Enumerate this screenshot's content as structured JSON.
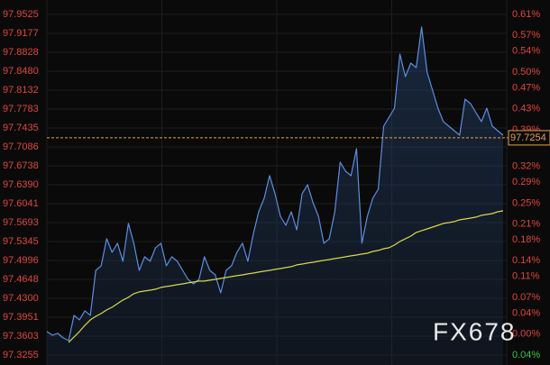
{
  "chart_data": {
    "type": "line",
    "watermark": "FX678",
    "last_value": 97.7254,
    "last_color": "#e8a24a",
    "axis_color": "#e0463c",
    "negative_color": "#3ec24a",
    "grid": true,
    "area_fill": true,
    "ylim": [
      97.3255,
      97.9525
    ],
    "yticks": [
      97.9525,
      97.9177,
      97.8828,
      {
        "value": 97.848,
        "label": "97.8480"
      },
      97.8132,
      97.7783,
      97.7435,
      97.7086,
      97.6738,
      {
        "value": 97.639,
        "label": "97.6390"
      },
      97.6041,
      97.5693,
      97.5345,
      97.4996,
      97.4648,
      {
        "value": 97.43,
        "label": "97.4300"
      },
      97.3951,
      97.3603,
      97.3255
    ],
    "y2lim": [
      -0.04,
      0.61
    ],
    "y2ticks": [
      {
        "value": 0.61,
        "label": "0.61%"
      },
      {
        "value": 0.57,
        "label": "0.57%"
      },
      {
        "value": 0.54,
        "label": "0.54%"
      },
      {
        "value": 0.5,
        "label": "0.50%"
      },
      {
        "value": 0.47,
        "label": "0.47%"
      },
      {
        "value": 0.43,
        "label": "0.43%"
      },
      {
        "value": 0.39,
        "label": "0.39%"
      },
      {
        "value": 0.32,
        "label": "0.32%"
      },
      {
        "value": 0.29,
        "label": "0.29%"
      },
      {
        "value": 0.25,
        "label": "0.25%"
      },
      {
        "value": 0.21,
        "label": "0.21%"
      },
      {
        "value": 0.18,
        "label": "0.18%"
      },
      {
        "value": 0.14,
        "label": "0.14%"
      },
      {
        "value": 0.11,
        "label": "0.11%"
      },
      {
        "value": 0.07,
        "label": "0.07%"
      },
      {
        "value": 0.04,
        "label": "0.04%"
      },
      {
        "value": 0,
        "label": "0.00%"
      },
      {
        "value": -0.04,
        "label": "0.04%"
      }
    ],
    "series": [
      {
        "color": "#5a8fe0",
        "values": [
          97.3688,
          97.3621,
          97.3654,
          97.3571,
          97.3522,
          97.3986,
          97.3903,
          97.4069,
          97.3986,
          97.4815,
          97.4898,
          97.5396,
          97.5147,
          97.5313,
          97.4981,
          97.5678,
          97.5313,
          97.4815,
          97.5064,
          97.4981,
          97.523,
          97.5313,
          97.4898,
          97.5064,
          97.4981,
          97.4815,
          97.4649,
          97.4566,
          97.4649,
          97.5064,
          97.4815,
          97.4732,
          97.4401,
          97.4815,
          97.4898,
          97.5147,
          97.5313,
          97.4981,
          97.5479,
          97.5893,
          97.6142,
          97.6557,
          97.6225,
          97.581,
          97.5644,
          97.5893,
          97.5561,
          97.6225,
          97.6391,
          97.6059,
          97.581,
          97.5313,
          97.5396,
          97.5893,
          97.6805,
          97.6639,
          97.6557,
          97.7054,
          97.5313,
          97.581,
          97.6142,
          97.6308,
          97.7469,
          97.7634,
          97.78,
          97.8795,
          97.8381,
          97.8629,
          97.8547,
          97.9293,
          97.8464,
          97.8132,
          97.78,
          97.7552,
          97.7469,
          97.7386,
          97.7303,
          97.7966,
          97.7883,
          97.7717,
          97.7552,
          97.78,
          97.7469,
          97.7386,
          97.7303
        ]
      },
      {
        "color": "#d8d84a",
        "values": [
          null,
          null,
          null,
          null,
          97.3489,
          97.3588,
          97.3688,
          97.3804,
          97.3903,
          97.3969,
          97.4019,
          97.4086,
          97.4135,
          97.4202,
          97.4268,
          97.4318,
          97.4384,
          97.4417,
          97.4434,
          97.445,
          97.4467,
          97.45,
          97.4517,
          97.4533,
          97.455,
          97.4566,
          97.4583,
          97.46,
          97.4616,
          97.4616,
          97.4633,
          97.4649,
          97.4666,
          97.4683,
          97.4699,
          97.4716,
          97.4732,
          97.4749,
          97.4765,
          97.4782,
          97.4799,
          97.4815,
          97.4832,
          97.4848,
          97.4865,
          97.4882,
          97.4915,
          97.4931,
          97.4948,
          97.4964,
          97.4981,
          97.4998,
          97.5014,
          97.5031,
          97.5047,
          97.5064,
          97.5081,
          97.5097,
          97.5114,
          97.513,
          97.5163,
          97.518,
          97.5213,
          97.523,
          97.528,
          97.5346,
          97.5396,
          97.5445,
          97.5512,
          97.5545,
          97.5578,
          97.5611,
          97.5644,
          97.5678,
          97.5694,
          97.5711,
          97.5744,
          97.576,
          97.5777,
          97.5794,
          97.5827,
          97.5843,
          97.586,
          97.5893,
          97.591
        ]
      }
    ]
  }
}
